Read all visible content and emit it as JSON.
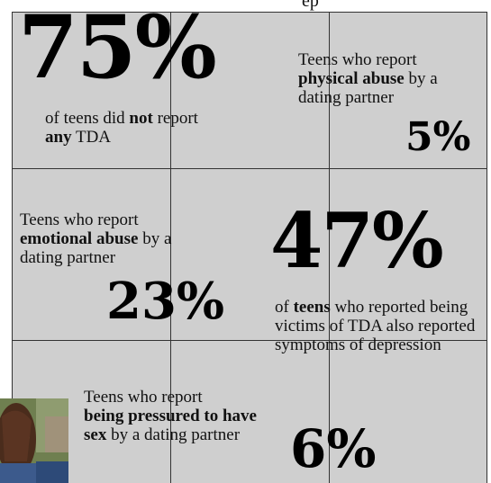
{
  "top_caption": "ep",
  "stats": {
    "no_tda": {
      "value": "75%",
      "pre": "of teens did ",
      "em1": "not",
      "mid": " report",
      "em2": "any",
      "post": " TDA"
    },
    "physical": {
      "pre": "Teens who report",
      "em": "physical abuse",
      "post": " by a dating partner",
      "value": "5%"
    },
    "emotional": {
      "pre": "Teens who report",
      "em": "emotional abuse",
      "post": " by a dating partner",
      "value": "23%"
    },
    "depression": {
      "value": "47%",
      "pre": "of ",
      "em": "teens",
      "post": " who reported being victims of TDA also reported symptoms of depression"
    },
    "pressured": {
      "pre": "Teens who report",
      "em": "being pressured to have sex",
      "post": " by a dating partner",
      "value": "6%"
    }
  },
  "colors": {
    "panel": "#cfcfcf",
    "grid": "#333333",
    "text": "#111111"
  },
  "icons": {
    "photo": "teen-portrait-photo"
  }
}
